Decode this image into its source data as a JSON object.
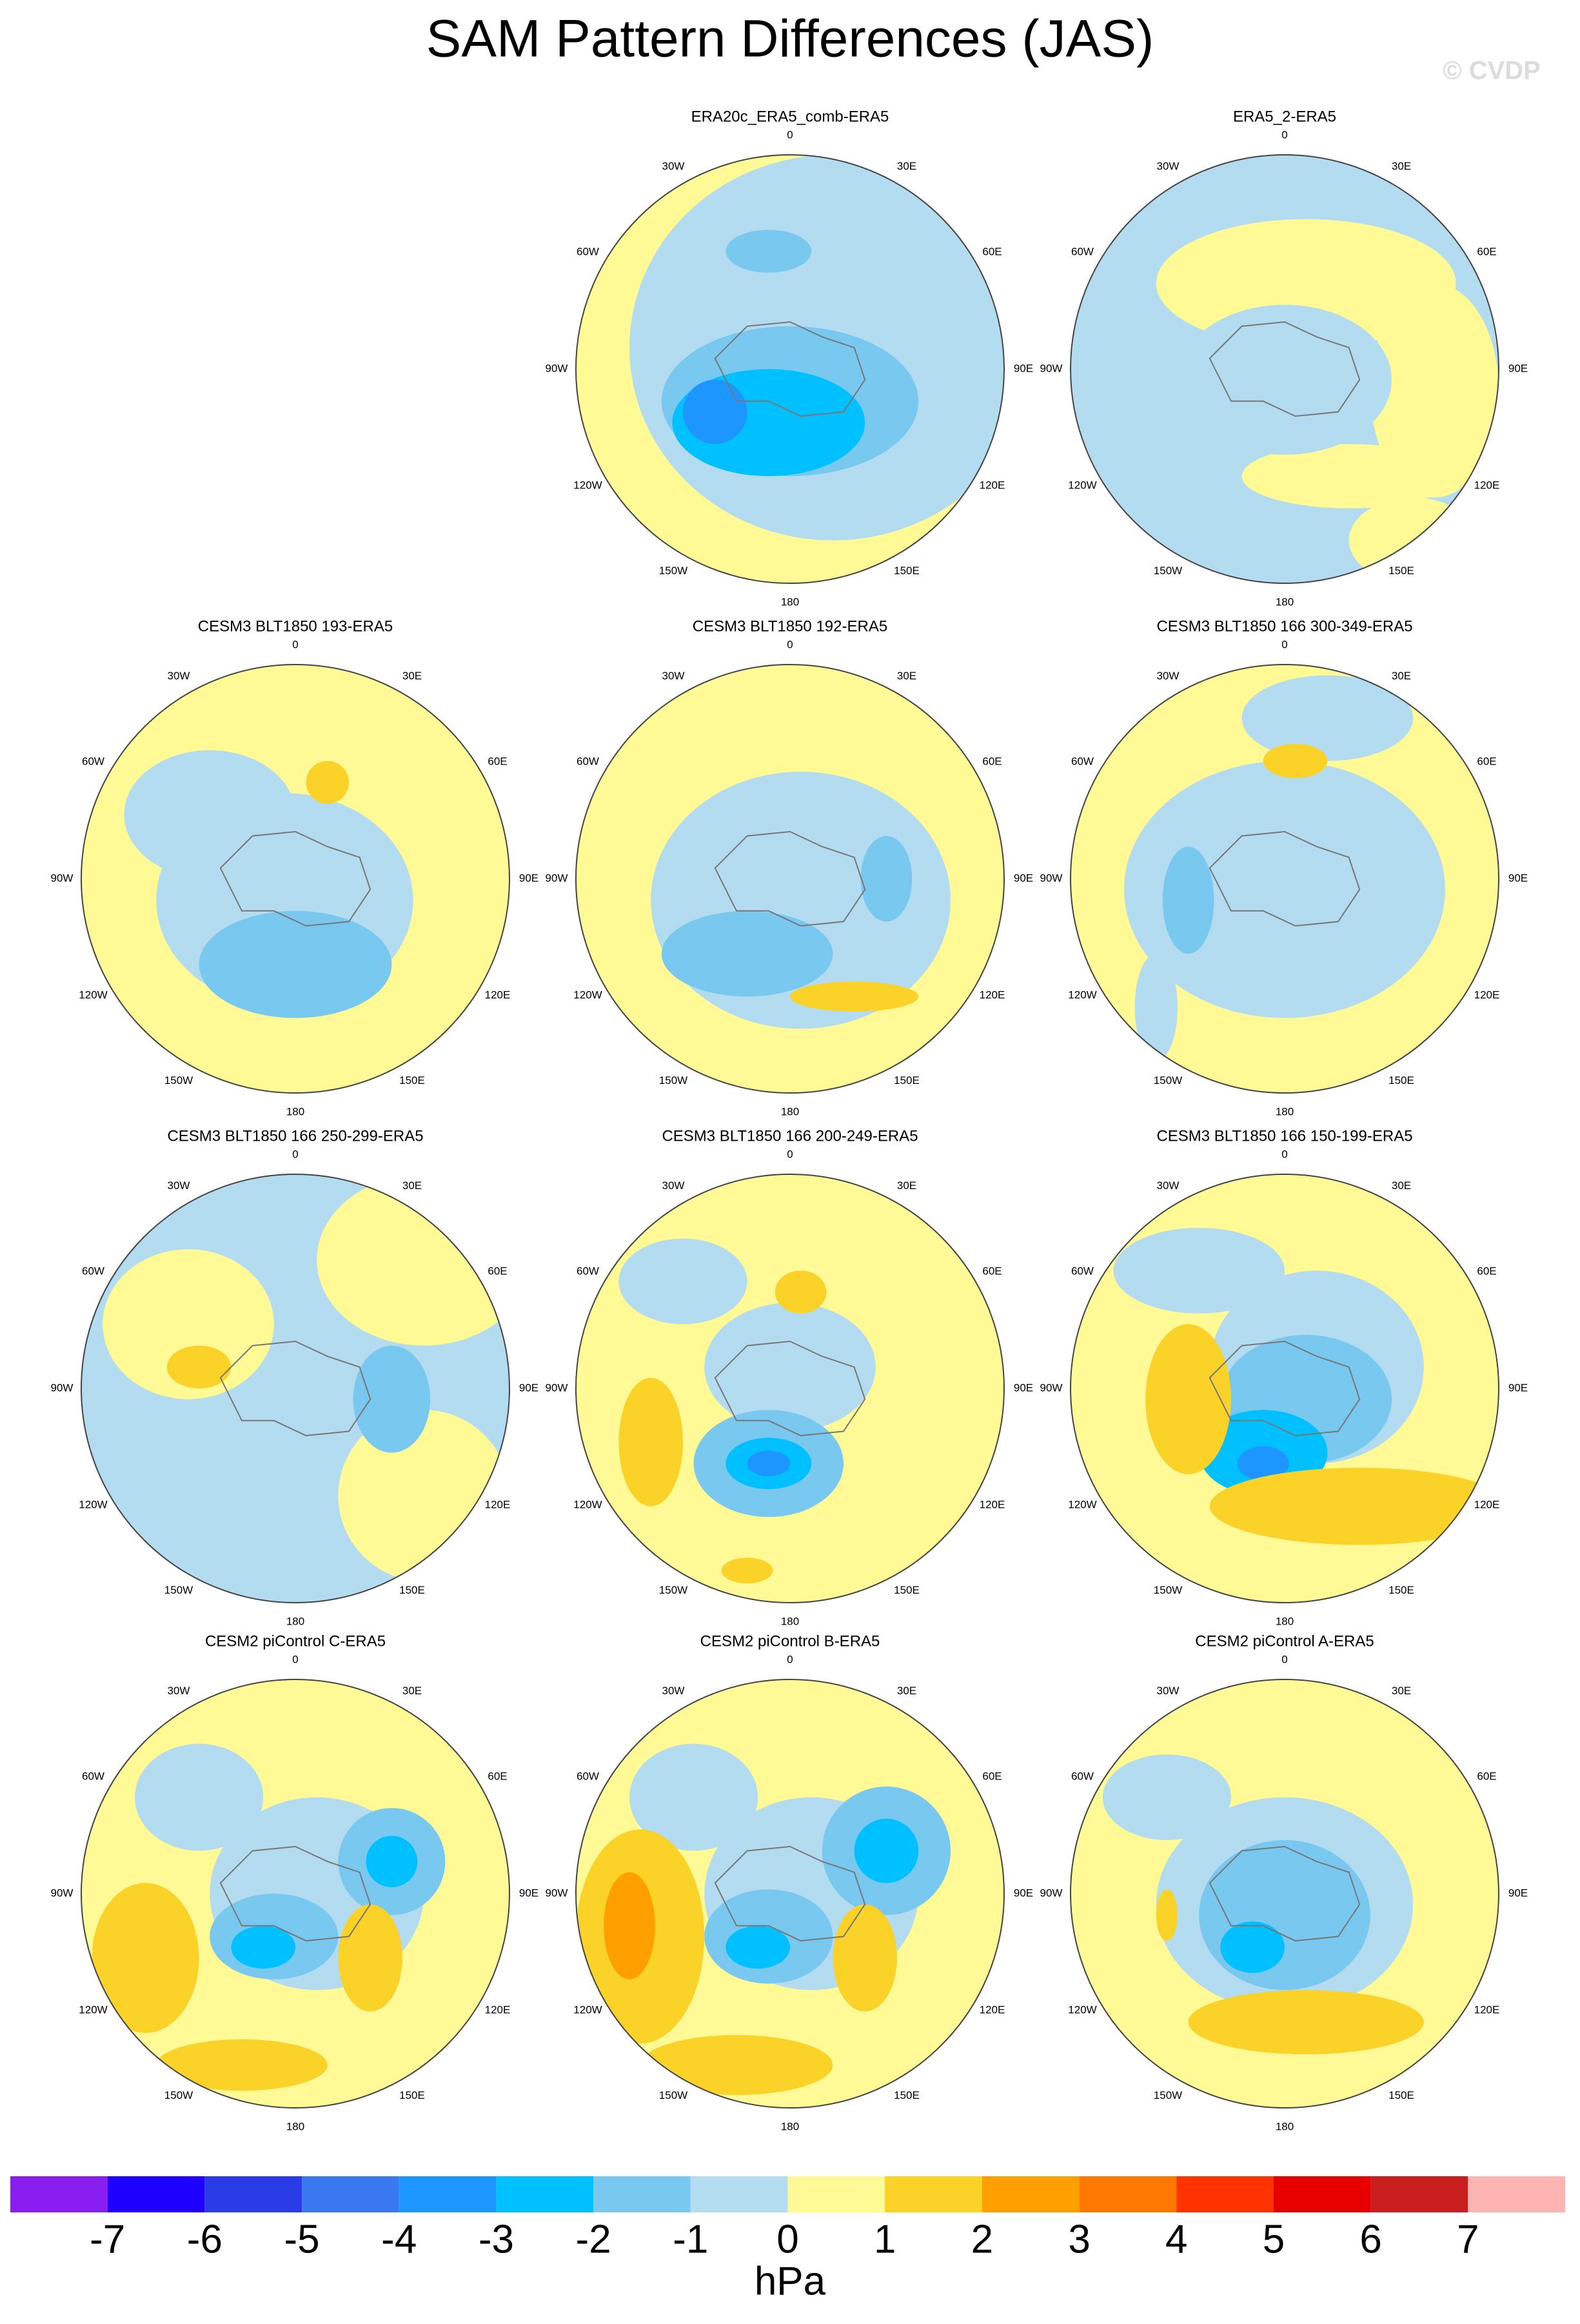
{
  "title": "SAM Pattern Differences (JAS)",
  "watermark": "© CVDP",
  "panels": [
    {
      "title": "ERA20c_ERA5_comb-ERA5"
    },
    {
      "title": "ERA5_2-ERA5"
    },
    {
      "title": "CESM3 BLT1850 193-ERA5"
    },
    {
      "title": "CESM3 BLT1850 192-ERA5"
    },
    {
      "title": "CESM3 BLT1850 166 300-349-ERA5"
    },
    {
      "title": "CESM3 BLT1850 166 250-299-ERA5"
    },
    {
      "title": "CESM3 BLT1850 166 200-249-ERA5"
    },
    {
      "title": "CESM3 BLT1850 166 150-199-ERA5"
    },
    {
      "title": "CESM2 piControl C-ERA5"
    },
    {
      "title": "CESM2 piControl B-ERA5"
    },
    {
      "title": "CESM2 piControl A-ERA5"
    }
  ],
  "longitude_labels": [
    "0",
    "30E",
    "60E",
    "90E",
    "120E",
    "150E",
    "180",
    "150W",
    "120W",
    "90W",
    "60W",
    "30W"
  ],
  "colorbar": {
    "colors": [
      "#8a1ef0",
      "#1e00ff",
      "#2a3ce6",
      "#3a78f0",
      "#1e96ff",
      "#00c0ff",
      "#78c8f0",
      "#b4dcf0",
      "#fffa96",
      "#fad228",
      "#ffa000",
      "#ff7800",
      "#ff3200",
      "#e60000",
      "#c81e1e",
      "#ffb4b4"
    ],
    "labels": [
      -7,
      -6,
      -5,
      -4,
      -3,
      -2,
      -1,
      0,
      1,
      2,
      3,
      4,
      5,
      6,
      7
    ],
    "unit": "hPa"
  }
}
